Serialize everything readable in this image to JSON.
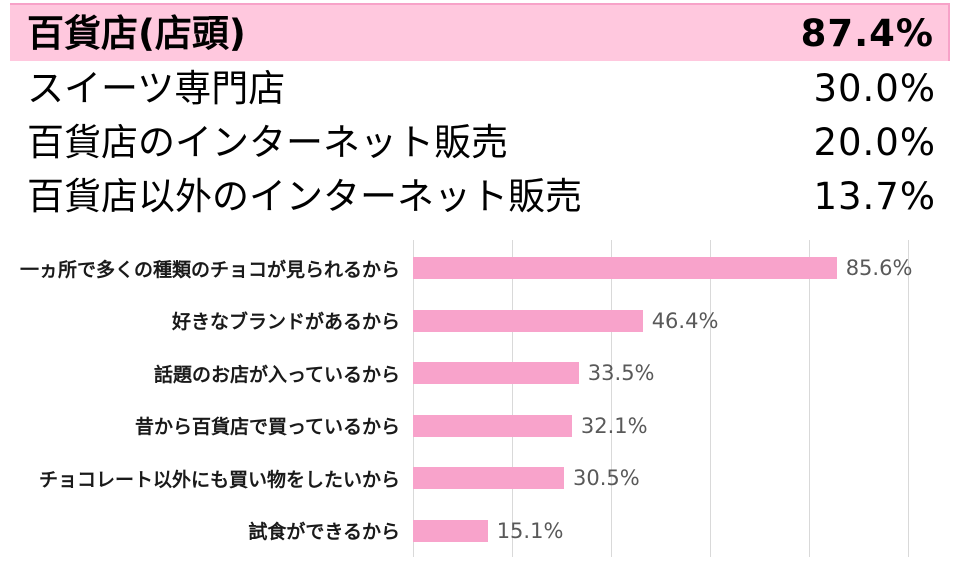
{
  "ranking": {
    "rows": [
      {
        "label": "百貨店(店頭)",
        "value": "87.4%",
        "highlighted": true
      },
      {
        "label": "スイーツ専門店",
        "value": "30.0%",
        "highlighted": false
      },
      {
        "label": "百貨店のインターネット販売",
        "value": "20.0%",
        "highlighted": false
      },
      {
        "label": "百貨店以外のインターネット販売",
        "value": "13.7%",
        "highlighted": false
      }
    ]
  },
  "chart_data": {
    "type": "bar",
    "orientation": "horizontal",
    "categories": [
      "一ヵ所で多くの種類のチョコが見られるから",
      "好きなブランドがあるから",
      "話題のお店が入っているから",
      "昔から百貨店で買っているから",
      "チョコレート以外にも買い物をしたいから",
      "試食ができるから"
    ],
    "values": [
      85.6,
      46.4,
      33.5,
      32.1,
      30.5,
      15.1
    ],
    "value_labels": [
      "85.6%",
      "46.4%",
      "33.5%",
      "32.1%",
      "30.5%",
      "15.1%"
    ],
    "xlim": [
      0,
      100
    ],
    "gridline_step": 20,
    "grid": true,
    "legend": "none",
    "bar_color": "#f8a3cb",
    "gridline_color": "#d9d9d9",
    "value_label_color": "#595959"
  },
  "colors": {
    "highlight_fill": "#ffc8de",
    "highlight_border": "#f7a2c8",
    "bar": "#f8a3cb",
    "gridline": "#d9d9d9",
    "value_text": "#595959"
  }
}
